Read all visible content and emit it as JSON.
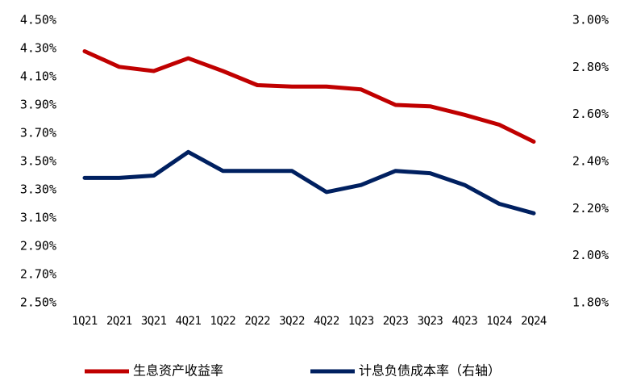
{
  "chart_data": {
    "type": "line",
    "categories": [
      "1Q21",
      "2Q21",
      "3Q21",
      "4Q21",
      "1Q22",
      "2Q22",
      "3Q22",
      "4Q22",
      "1Q23",
      "2Q23",
      "3Q23",
      "4Q23",
      "1Q24",
      "2Q24"
    ],
    "series": [
      {
        "name": "生息资产收益率",
        "color": "#c00000",
        "values": [
          4.28,
          4.17,
          4.14,
          4.23,
          4.14,
          4.04,
          4.03,
          4.03,
          4.01,
          3.9,
          3.89,
          3.83,
          3.76,
          3.64
        ]
      },
      {
        "name": "计息负债成本率（右轴）",
        "color": "#002060",
        "axis": "y2",
        "values": [
          2.33,
          2.33,
          2.34,
          2.44,
          2.36,
          2.36,
          2.36,
          2.27,
          2.3,
          2.36,
          2.35,
          2.3,
          2.22,
          2.18
        ]
      }
    ],
    "ylim": [
      2.5,
      4.5
    ],
    "yticks": [
      {
        "value": 2.5,
        "label": "2.50%"
      },
      {
        "value": 2.7,
        "label": "2.70%"
      },
      {
        "value": 2.9,
        "label": "2.90%"
      },
      {
        "value": 3.1,
        "label": "3.10%"
      },
      {
        "value": 3.3,
        "label": "3.30%"
      },
      {
        "value": 3.5,
        "label": "3.50%"
      },
      {
        "value": 3.7,
        "label": "3.70%"
      },
      {
        "value": 3.9,
        "label": "3.90%"
      },
      {
        "value": 4.1,
        "label": "4.10%"
      },
      {
        "value": 4.3,
        "label": "4.30%"
      },
      {
        "value": 4.5,
        "label": "4.50%"
      }
    ],
    "y2lim": [
      1.8,
      3.0
    ],
    "y2ticks": [
      {
        "value": 1.8,
        "label": "1.80%"
      },
      {
        "value": 2.0,
        "label": "2.00%"
      },
      {
        "value": 2.2,
        "label": "2.20%"
      },
      {
        "value": 2.4,
        "label": "2.40%"
      },
      {
        "value": 2.6,
        "label": "2.60%"
      },
      {
        "value": 2.8,
        "label": "2.80%"
      },
      {
        "value": 3.0,
        "label": "3.00%"
      }
    ],
    "grid": false,
    "legend": "bottom"
  }
}
